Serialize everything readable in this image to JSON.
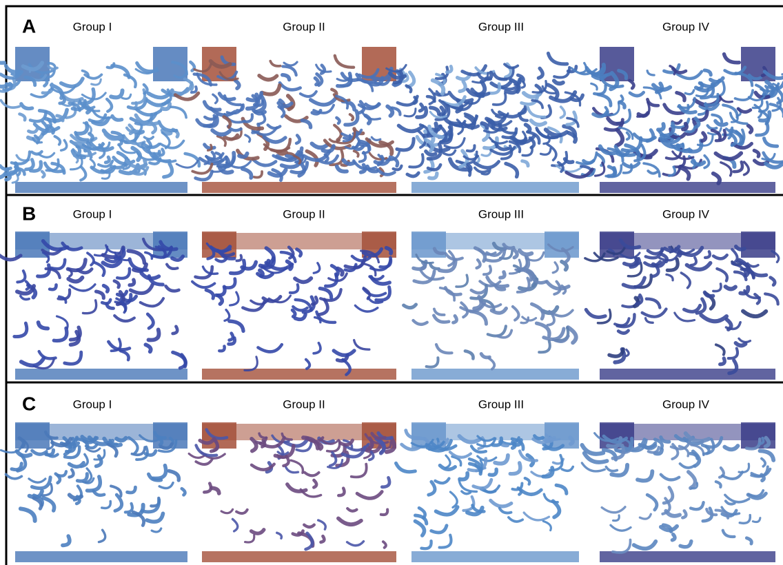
{
  "panels": [
    {
      "label": "A",
      "groups": [
        "Group I",
        "Group II",
        "Group III",
        "Group IV"
      ]
    },
    {
      "label": "B",
      "groups": [
        "Group I",
        "Group II",
        "Group III",
        "Group IV"
      ]
    },
    {
      "label": "C",
      "groups": [
        "Group I",
        "Group II",
        "Group III",
        "Group IV"
      ]
    }
  ]
}
